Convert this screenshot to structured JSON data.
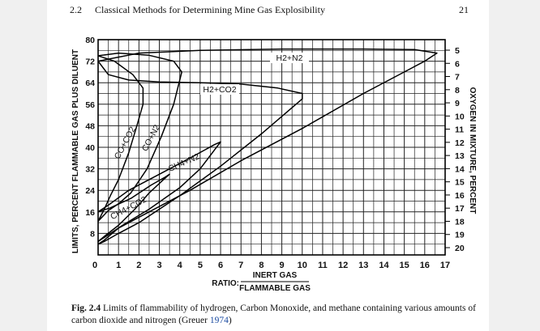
{
  "header": {
    "section": "2.2",
    "title": "Classical Methods for Determining Mine Gas Explosibility",
    "page": "21"
  },
  "chart_data": {
    "type": "line",
    "ylabel": "LIMITS, PERCENT FLAMMABLE GAS PLUS DILUENT",
    "y2label": "OXYGEN IN MIXTURE, PERCENT",
    "xlabel_prefix": "RATIO:",
    "xlabel_numerator": "INERT GAS",
    "xlabel_denominator": "FLAMMABLE GAS",
    "xlim": [
      0,
      17
    ],
    "ylim": [
      0,
      80
    ],
    "x_ticks": [
      "0",
      "1",
      "2",
      "3",
      "4",
      "5",
      "6",
      "7",
      "8",
      "9",
      "10",
      "11",
      "12",
      "13",
      "14",
      "15",
      "16",
      "17"
    ],
    "y_ticks": [
      "8",
      "16",
      "24",
      "32",
      "40",
      "48",
      "56",
      "64",
      "72",
      "80"
    ],
    "y2_ticks": [
      "5",
      "6",
      "7",
      "8",
      "9",
      "10",
      "11",
      "12",
      "13",
      "14",
      "15",
      "16",
      "17",
      "18",
      "19",
      "20"
    ],
    "grid": true,
    "series": [
      {
        "name": "H2+N2",
        "x": [
          0,
          2,
          5,
          9,
          13,
          15.5,
          16.6,
          16,
          13,
          10,
          7,
          4.5,
          2.5,
          1,
          0.3,
          0
        ],
        "y": [
          72,
          75,
          76,
          76.5,
          76.5,
          76.3,
          75,
          72,
          60,
          47,
          35,
          24,
          16,
          10,
          5.5,
          4
        ]
      },
      {
        "name": "H2+CO2",
        "x": [
          0,
          0.5,
          1.5,
          3,
          5,
          7,
          8.8,
          10,
          10,
          8,
          6,
          4,
          2,
          1,
          0.3,
          0
        ],
        "y": [
          72,
          67,
          65,
          64.3,
          64,
          63.5,
          62,
          60,
          58,
          45,
          33,
          22,
          12,
          8,
          5,
          4
        ]
      },
      {
        "name": "CO+N2",
        "x": [
          0,
          1,
          2.5,
          3.7,
          4.1,
          3.7,
          3.1,
          2.4,
          1.6,
          1,
          0.5,
          0
        ],
        "y": [
          74,
          75,
          74.2,
          72,
          68,
          56,
          44,
          32,
          23,
          19,
          16.5,
          12.5
        ]
      },
      {
        "name": "CO+CO2",
        "x": [
          0,
          0.8,
          1.7,
          2.2,
          2.2,
          1.9,
          1.5,
          1,
          0.6,
          0.3,
          0
        ],
        "y": [
          74,
          72,
          67,
          62,
          56,
          48,
          38,
          28,
          22,
          17,
          12.5
        ]
      },
      {
        "name": "CH4+N2",
        "x": [
          0,
          0.5,
          1.5,
          3,
          4.5,
          5.7,
          6,
          5.7,
          5,
          4,
          2.5,
          1.2,
          0.5,
          0
        ],
        "y": [
          16,
          18.5,
          24,
          30,
          36,
          41,
          42,
          39,
          32,
          25,
          17,
          11,
          7.5,
          5
        ]
      },
      {
        "name": "CH4+CO2",
        "x": [
          0,
          0.6,
          1.6,
          2.6,
          3.3,
          3.5,
          3.2,
          2.5,
          1.8,
          1,
          0.4,
          0
        ],
        "y": [
          16,
          17.5,
          21,
          26,
          29,
          30,
          28,
          23,
          17,
          11,
          7.5,
          5
        ]
      }
    ]
  },
  "caption": {
    "label": "Fig. 2.4",
    "text": "Limits of flammability of hydrogen, Carbon Monoxide, and methane containing various amounts of carbon dioxide and nitrogen (Greuer",
    "citation": "1974",
    "end": ")"
  }
}
